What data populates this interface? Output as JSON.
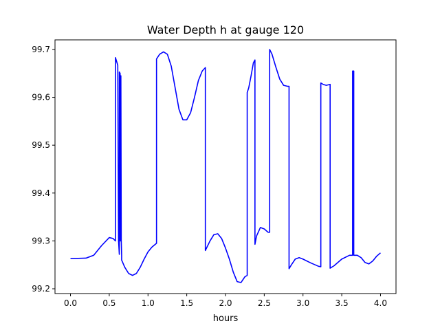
{
  "chart_data": {
    "type": "line",
    "title": "Water Depth h at gauge 120",
    "xlabel": "hours",
    "ylabel": "",
    "xlim": [
      -0.2,
      4.2
    ],
    "ylim": [
      99.19,
      99.72
    ],
    "xticks": [
      0.0,
      0.5,
      1.0,
      1.5,
      2.0,
      2.5,
      3.0,
      3.5,
      4.0
    ],
    "xtick_labels": [
      "0.0",
      "0.5",
      "1.0",
      "1.5",
      "2.0",
      "2.5",
      "3.0",
      "3.5",
      "4.0"
    ],
    "yticks": [
      99.2,
      99.3,
      99.4,
      99.5,
      99.6,
      99.7
    ],
    "ytick_labels": [
      "99.2",
      "99.3",
      "99.4",
      "99.5",
      "99.6",
      "99.7"
    ],
    "grid": false,
    "series": [
      {
        "color": "#0000ff",
        "x": [
          0.0,
          0.2,
          0.3,
          0.4,
          0.5,
          0.55,
          0.58,
          0.58,
          0.61,
          0.62,
          0.63,
          0.63,
          0.64,
          0.645,
          0.65,
          0.655,
          0.66,
          0.66,
          0.7,
          0.75,
          0.8,
          0.85,
          0.9,
          0.95,
          1.0,
          1.05,
          1.11,
          1.11,
          1.15,
          1.2,
          1.25,
          1.3,
          1.35,
          1.4,
          1.45,
          1.5,
          1.55,
          1.6,
          1.65,
          1.7,
          1.74,
          1.74,
          1.8,
          1.85,
          1.9,
          1.95,
          2.0,
          2.05,
          2.1,
          2.15,
          2.2,
          2.25,
          2.28,
          2.28,
          2.3,
          2.3,
          2.33,
          2.36,
          2.38,
          2.38,
          2.4,
          2.45,
          2.5,
          2.55,
          2.57,
          2.57,
          2.6,
          2.65,
          2.7,
          2.75,
          2.8,
          2.82,
          2.82,
          2.85,
          2.9,
          2.95,
          3.0,
          3.1,
          3.2,
          3.23,
          3.23,
          3.26,
          3.3,
          3.35,
          3.35,
          3.4,
          3.5,
          3.6,
          3.64,
          3.64,
          3.655,
          3.655,
          3.7,
          3.75,
          3.8,
          3.85,
          3.9,
          3.95,
          4.0
        ],
        "y": [
          99.263,
          99.264,
          99.27,
          99.29,
          99.307,
          99.305,
          99.3,
          99.683,
          99.667,
          99.3,
          99.272,
          99.653,
          99.65,
          99.3,
          99.645,
          99.3,
          99.27,
          99.26,
          99.245,
          99.232,
          99.228,
          99.232,
          99.245,
          99.262,
          99.277,
          99.287,
          99.295,
          99.68,
          99.69,
          99.695,
          99.69,
          99.665,
          99.62,
          99.575,
          99.553,
          99.553,
          99.568,
          99.6,
          99.635,
          99.655,
          99.662,
          99.28,
          99.3,
          99.313,
          99.315,
          99.305,
          99.285,
          99.262,
          99.235,
          99.215,
          99.213,
          99.225,
          99.228,
          99.61,
          99.62,
          99.62,
          99.645,
          99.672,
          99.678,
          99.293,
          99.31,
          99.328,
          99.325,
          99.318,
          99.318,
          99.7,
          99.69,
          99.663,
          99.638,
          99.625,
          99.623,
          99.623,
          99.242,
          99.25,
          99.262,
          99.265,
          99.262,
          99.254,
          99.247,
          99.246,
          99.63,
          99.627,
          99.625,
          99.627,
          99.243,
          99.248,
          99.262,
          99.27,
          99.27,
          99.655,
          99.655,
          99.27,
          99.27,
          99.265,
          99.255,
          99.252,
          99.258,
          99.268,
          99.275
        ]
      }
    ]
  }
}
